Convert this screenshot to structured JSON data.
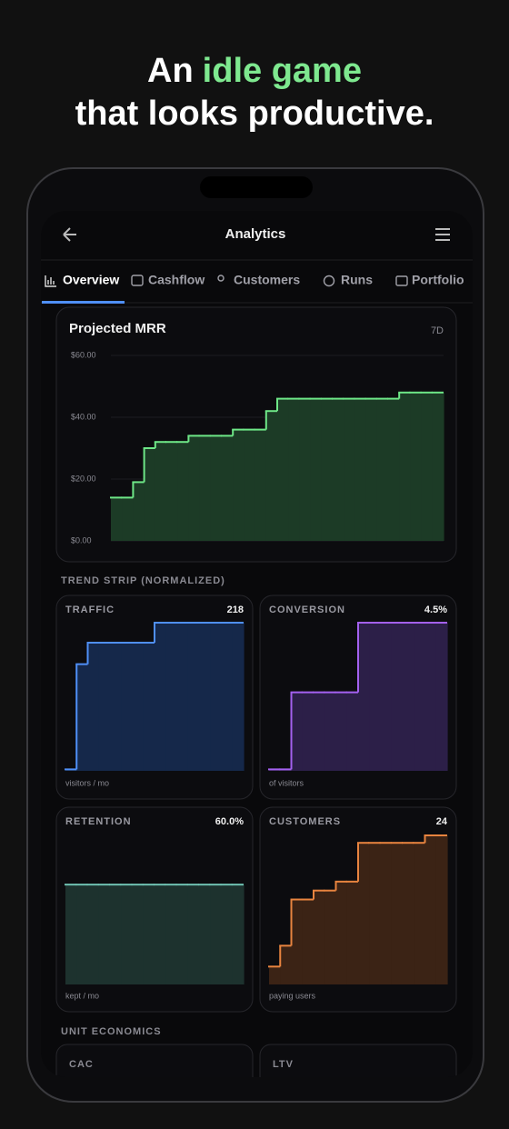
{
  "headline": {
    "line1": [
      "An",
      "idle game"
    ],
    "line2": "that looks productive."
  },
  "app": {
    "title": "Analytics",
    "tabs": [
      "Overview",
      "Cashflow",
      "Customers",
      "Runs",
      "Portfolio"
    ]
  },
  "sections": [
    "TREND STRIP (NORMALIZED)",
    "UNIT ECONOMICS"
  ],
  "unit_cards": [
    "CAC",
    "LTV"
  ],
  "chart_data": [
    {
      "type": "step",
      "title": "Projected MRR",
      "range": "7D",
      "color": "#6ee787",
      "fill": "#1c3b26",
      "grid": true,
      "ylim": [
        0,
        60
      ],
      "yticks": [
        {
          "value": 0,
          "label": "$0.00"
        },
        {
          "value": 20,
          "label": "$20.00"
        },
        {
          "value": 40,
          "label": "$40.00"
        },
        {
          "value": 60,
          "label": "$60.00"
        }
      ],
      "values": [
        14,
        14,
        19,
        30,
        32,
        32,
        32,
        34,
        34,
        34,
        34,
        36,
        36,
        36,
        42,
        46,
        46,
        46,
        46,
        46,
        46,
        46,
        46,
        46,
        46,
        46,
        48,
        48,
        48,
        48
      ]
    },
    {
      "type": "step",
      "title": "TRAFFIC",
      "value_label": "218",
      "caption": "visitors / mo",
      "color": "#4f8ff7",
      "fill": "#15284a",
      "ylim": [
        0,
        1
      ],
      "values": [
        0.01,
        0.72,
        0.865,
        0.865,
        0.865,
        0.865,
        0.865,
        0.865,
        1,
        1,
        1,
        1,
        1,
        1,
        1,
        1
      ]
    },
    {
      "type": "step",
      "title": "CONVERSION",
      "value_label": "4.5%",
      "caption": "of visitors",
      "color": "#a461f0",
      "fill": "#2c1f48",
      "ylim": [
        0,
        1
      ],
      "values": [
        0.01,
        0.01,
        0.53,
        0.53,
        0.53,
        0.53,
        0.53,
        0.53,
        1,
        1,
        1,
        1,
        1,
        1,
        1,
        1
      ]
    },
    {
      "type": "step",
      "title": "RETENTION",
      "value_label": "60.0%",
      "caption": "kept / mo",
      "color": "#6fc0b0",
      "fill": "#1d322e",
      "ylim": [
        0,
        1
      ],
      "values": [
        0.67,
        0.67,
        0.67,
        0.67,
        0.67,
        0.67,
        0.67,
        0.67,
        0.67,
        0.67,
        0.67,
        0.67,
        0.67,
        0.67,
        0.67,
        0.67
      ]
    },
    {
      "type": "step",
      "title": "CUSTOMERS",
      "value_label": "24",
      "caption": "paying users",
      "color": "#e8843f",
      "fill": "#3b2315",
      "ylim": [
        0,
        1
      ],
      "values": [
        0.12,
        0.26,
        0.57,
        0.57,
        0.63,
        0.63,
        0.69,
        0.69,
        0.95,
        0.95,
        0.95,
        0.95,
        0.95,
        0.95,
        1,
        1
      ]
    }
  ]
}
